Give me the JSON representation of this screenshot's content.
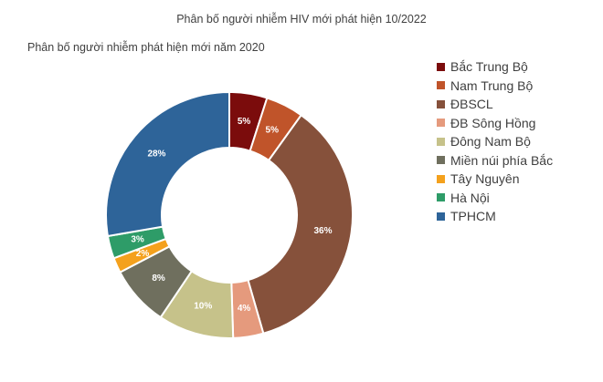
{
  "chart_data": {
    "type": "pie",
    "title": "Phân bố người nhiễm HIV mới phát hiện 10/2022",
    "subtitle": "Phân bố người nhiễm phát hiện mới năm 2020",
    "legend_position": "right",
    "slices": [
      {
        "label": "Bắc Trung Bộ",
        "value": 5,
        "display": "5%",
        "color": "#7b0c0c"
      },
      {
        "label": "Nam Trung Bộ",
        "value": 5,
        "display": "5%",
        "color": "#c0542a"
      },
      {
        "label": "ĐBSCL",
        "value": 36,
        "display": "36%",
        "color": "#86513b"
      },
      {
        "label": "ĐB Sông Hồng",
        "value": 4,
        "display": "4%",
        "color": "#e59a7d"
      },
      {
        "label": "Đông Nam Bộ",
        "value": 10,
        "display": "10%",
        "color": "#c6c28a"
      },
      {
        "label": "Miền núi phía Bắc",
        "value": 8,
        "display": "8%",
        "color": "#6f6f5e"
      },
      {
        "label": "Tây Nguyên",
        "value": 2,
        "display": "2%",
        "color": "#f4a11d"
      },
      {
        "label": "Hà Nội",
        "value": 3,
        "display": "3%",
        "color": "#2e9c68"
      },
      {
        "label": "TPHCM",
        "value": 28,
        "display": "28%",
        "color": "#2e6499"
      }
    ]
  }
}
